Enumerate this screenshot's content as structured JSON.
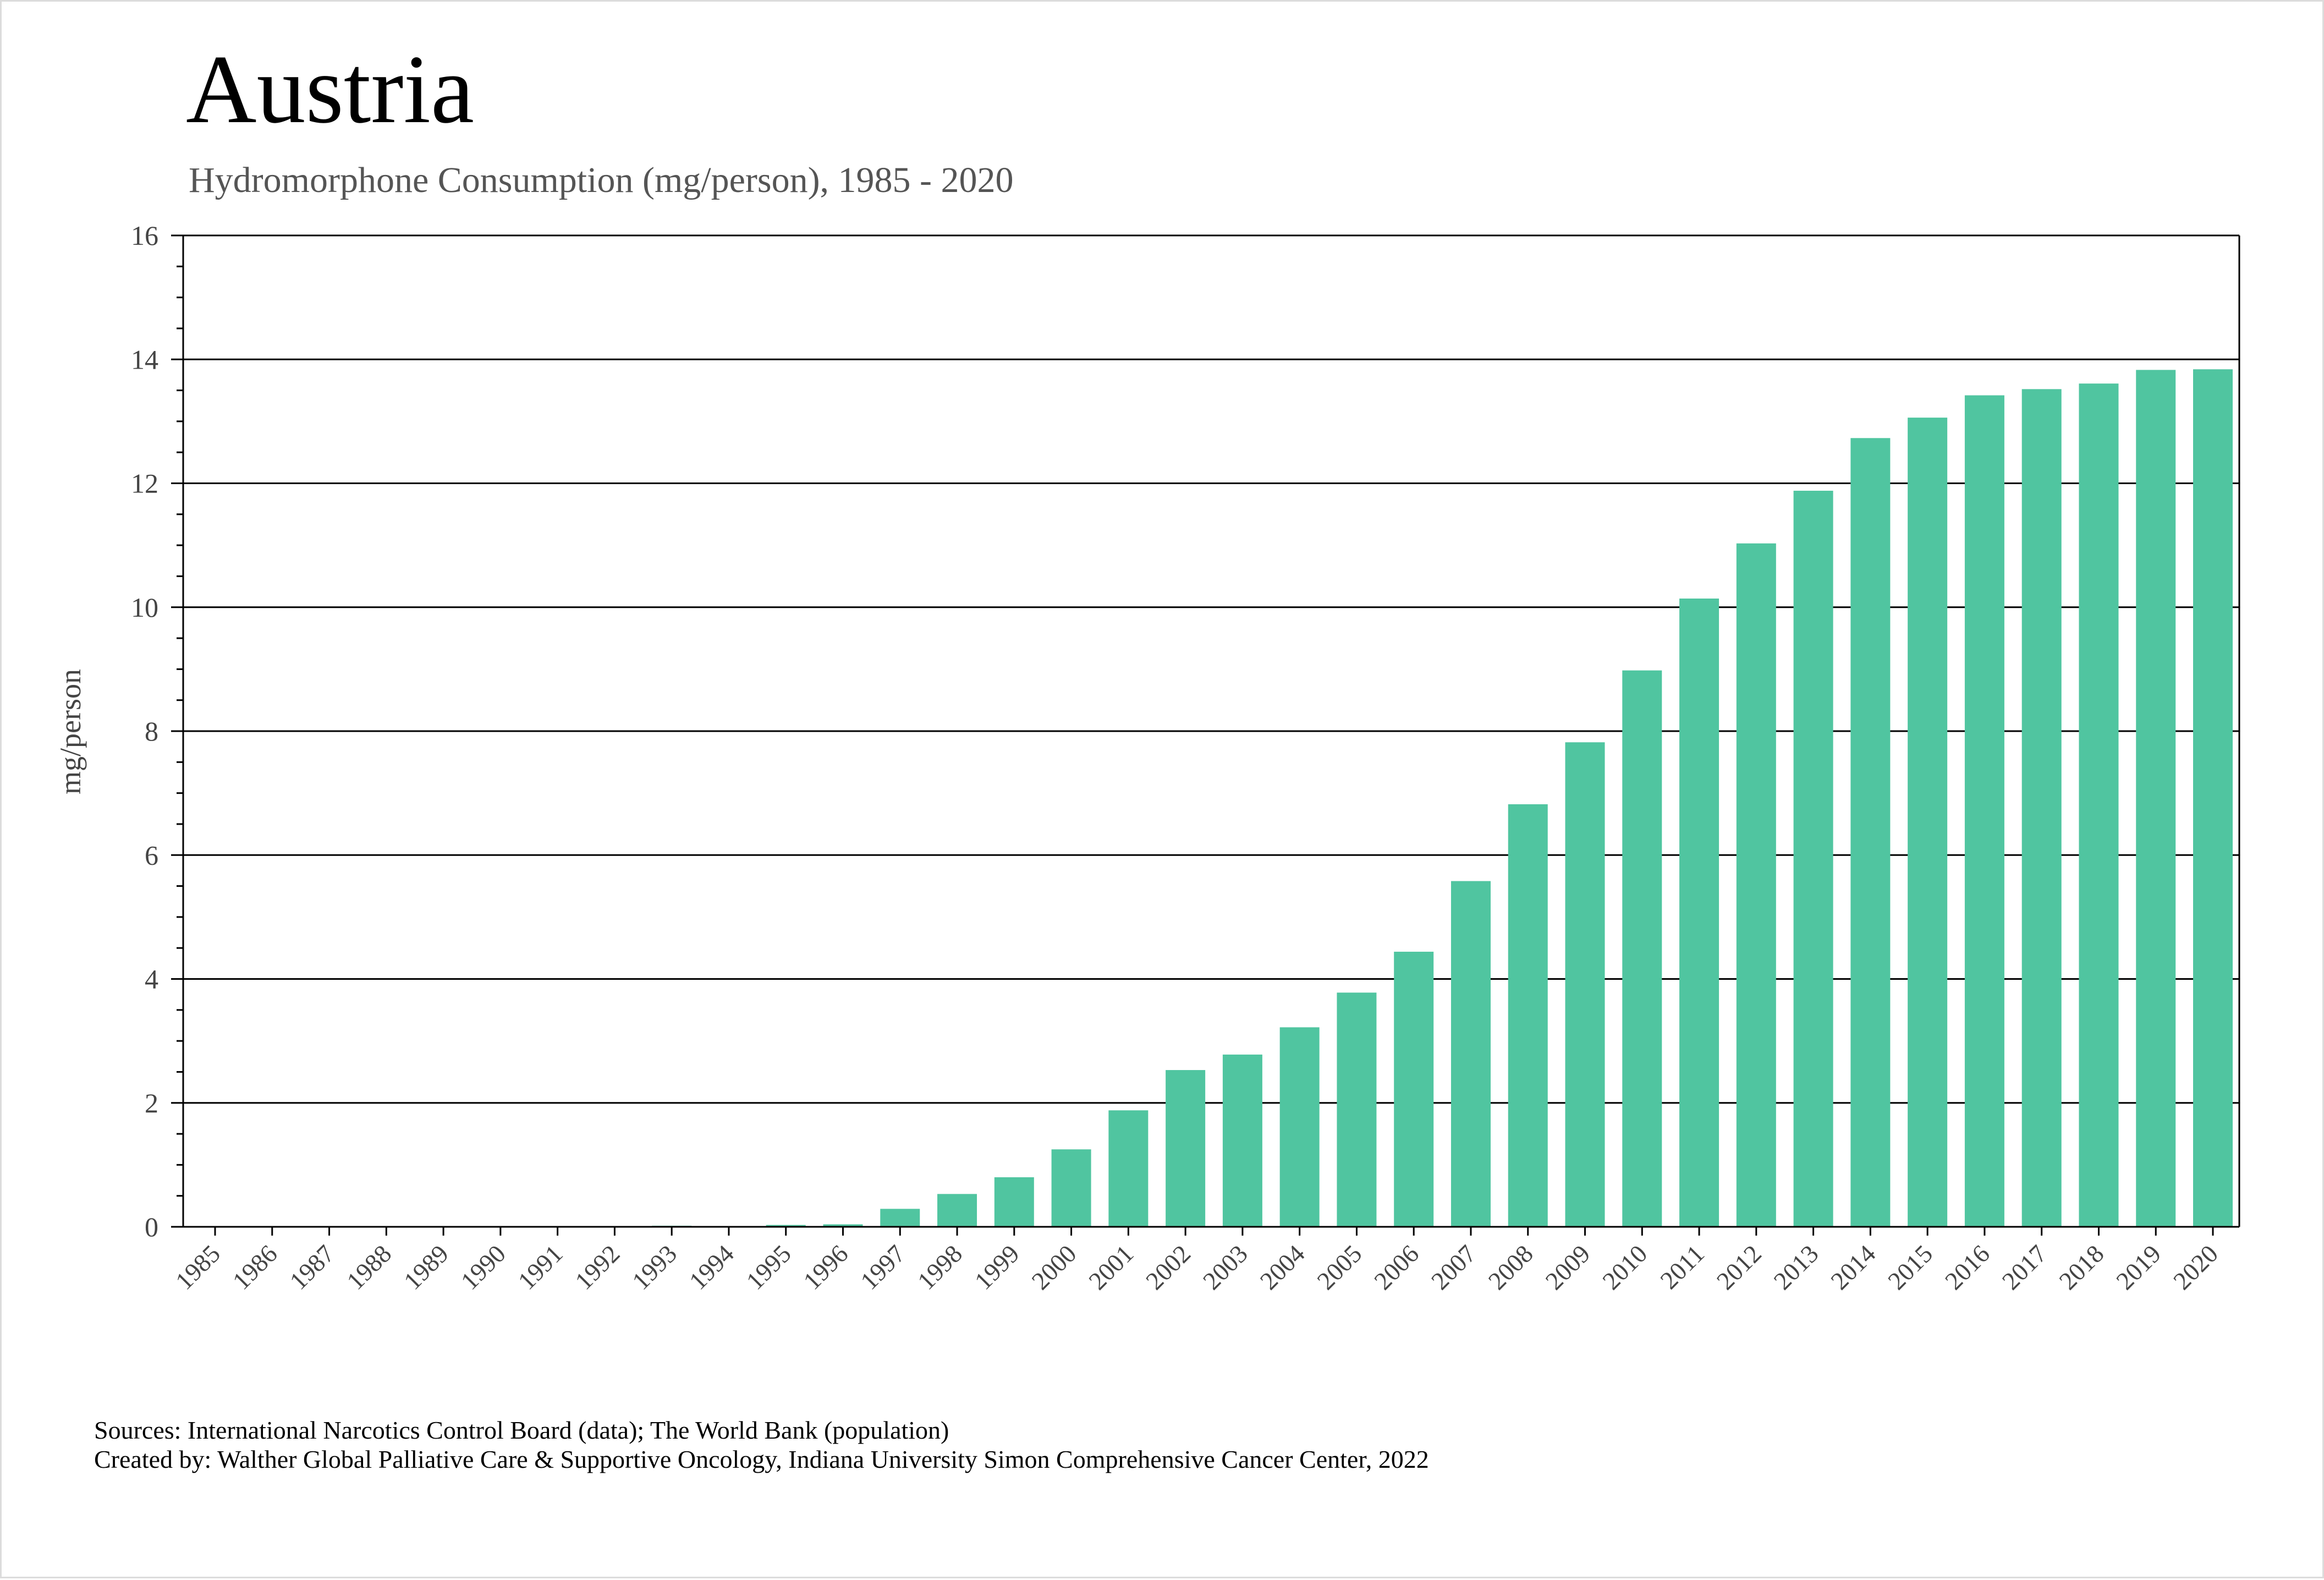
{
  "chart_data": {
    "type": "bar",
    "title": "Austria",
    "subtitle": "Hydromorphone Consumption (mg/person), 1985 - 2020",
    "xlabel": "",
    "ylabel": "mg/person",
    "ylim": [
      0,
      16
    ],
    "yticks": [
      0,
      2,
      4,
      6,
      8,
      10,
      12,
      14,
      16
    ],
    "grid": true,
    "bar_color": "#50c5a0",
    "categories": [
      "1985",
      "1986",
      "1987",
      "1988",
      "1989",
      "1990",
      "1991",
      "1992",
      "1993",
      "1994",
      "1995",
      "1996",
      "1997",
      "1998",
      "1999",
      "2000",
      "2001",
      "2002",
      "2003",
      "2004",
      "2005",
      "2006",
      "2007",
      "2008",
      "2009",
      "2010",
      "2011",
      "2012",
      "2013",
      "2014",
      "2015",
      "2016",
      "2017",
      "2018",
      "2019",
      "2020"
    ],
    "values": [
      0,
      0,
      0,
      0,
      0,
      0,
      0,
      0,
      0.01,
      0,
      0.03,
      0.04,
      0.29,
      0.53,
      0.8,
      1.25,
      1.88,
      2.53,
      2.78,
      3.22,
      3.78,
      4.44,
      5.58,
      6.82,
      7.82,
      8.98,
      10.14,
      11.03,
      11.88,
      12.73,
      13.06,
      13.42,
      13.52,
      13.61,
      13.83,
      13.84
    ]
  },
  "footer": {
    "sources": "Sources: International Narcotics Control Board (data); The World Bank (population)",
    "created_by": "Created by: Walther Global Palliative Care & Supportive Oncology, Indiana University Simon Comprehensive Cancer Center, 2022"
  }
}
